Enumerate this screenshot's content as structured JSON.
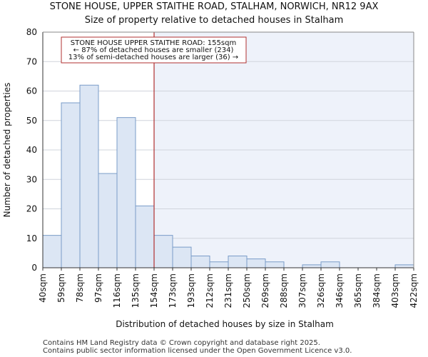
{
  "chart_data": {
    "type": "bar",
    "title": "STONE HOUSE, UPPER STAITHE ROAD, STALHAM, NORWICH, NR12 9AX",
    "subtitle": "Size of property relative to detached houses in Stalham",
    "xlabel": "Distribution of detached houses by size in Stalham",
    "ylabel": "Number of detached properties",
    "ylim": [
      0,
      80
    ],
    "yticks": [
      0,
      10,
      20,
      30,
      40,
      50,
      60,
      70,
      80
    ],
    "bin_edge_labels": [
      "40sqm",
      "59sqm",
      "78sqm",
      "97sqm",
      "116sqm",
      "135sqm",
      "154sqm",
      "173sqm",
      "193sqm",
      "212sqm",
      "231sqm",
      "250sqm",
      "269sqm",
      "288sqm",
      "307sqm",
      "326sqm",
      "346sqm",
      "365sqm",
      "384sqm",
      "403sqm",
      "422sqm"
    ],
    "values": [
      11,
      56,
      62,
      32,
      51,
      21,
      11,
      7,
      4,
      2,
      4,
      3,
      2,
      0,
      1,
      2,
      0,
      0,
      0,
      1
    ],
    "marker": {
      "bin_position": 6,
      "label": "155sqm"
    },
    "annotation": {
      "line1": "STONE HOUSE UPPER STAITHE ROAD: 155sqm",
      "line2": "← 87% of detached houses are smaller (234)",
      "line3": "13% of semi-detached houses are larger (36) →"
    },
    "colors": {
      "bar_fill": "#dce6f4",
      "bar_stroke": "#7a9cc8",
      "shade": "#eef2fa",
      "marker": "#b03030"
    }
  },
  "footer": {
    "line1": "Contains HM Land Registry data © Crown copyright and database right 2025.",
    "line2": "Contains public sector information licensed under the Open Government Licence v3.0."
  }
}
